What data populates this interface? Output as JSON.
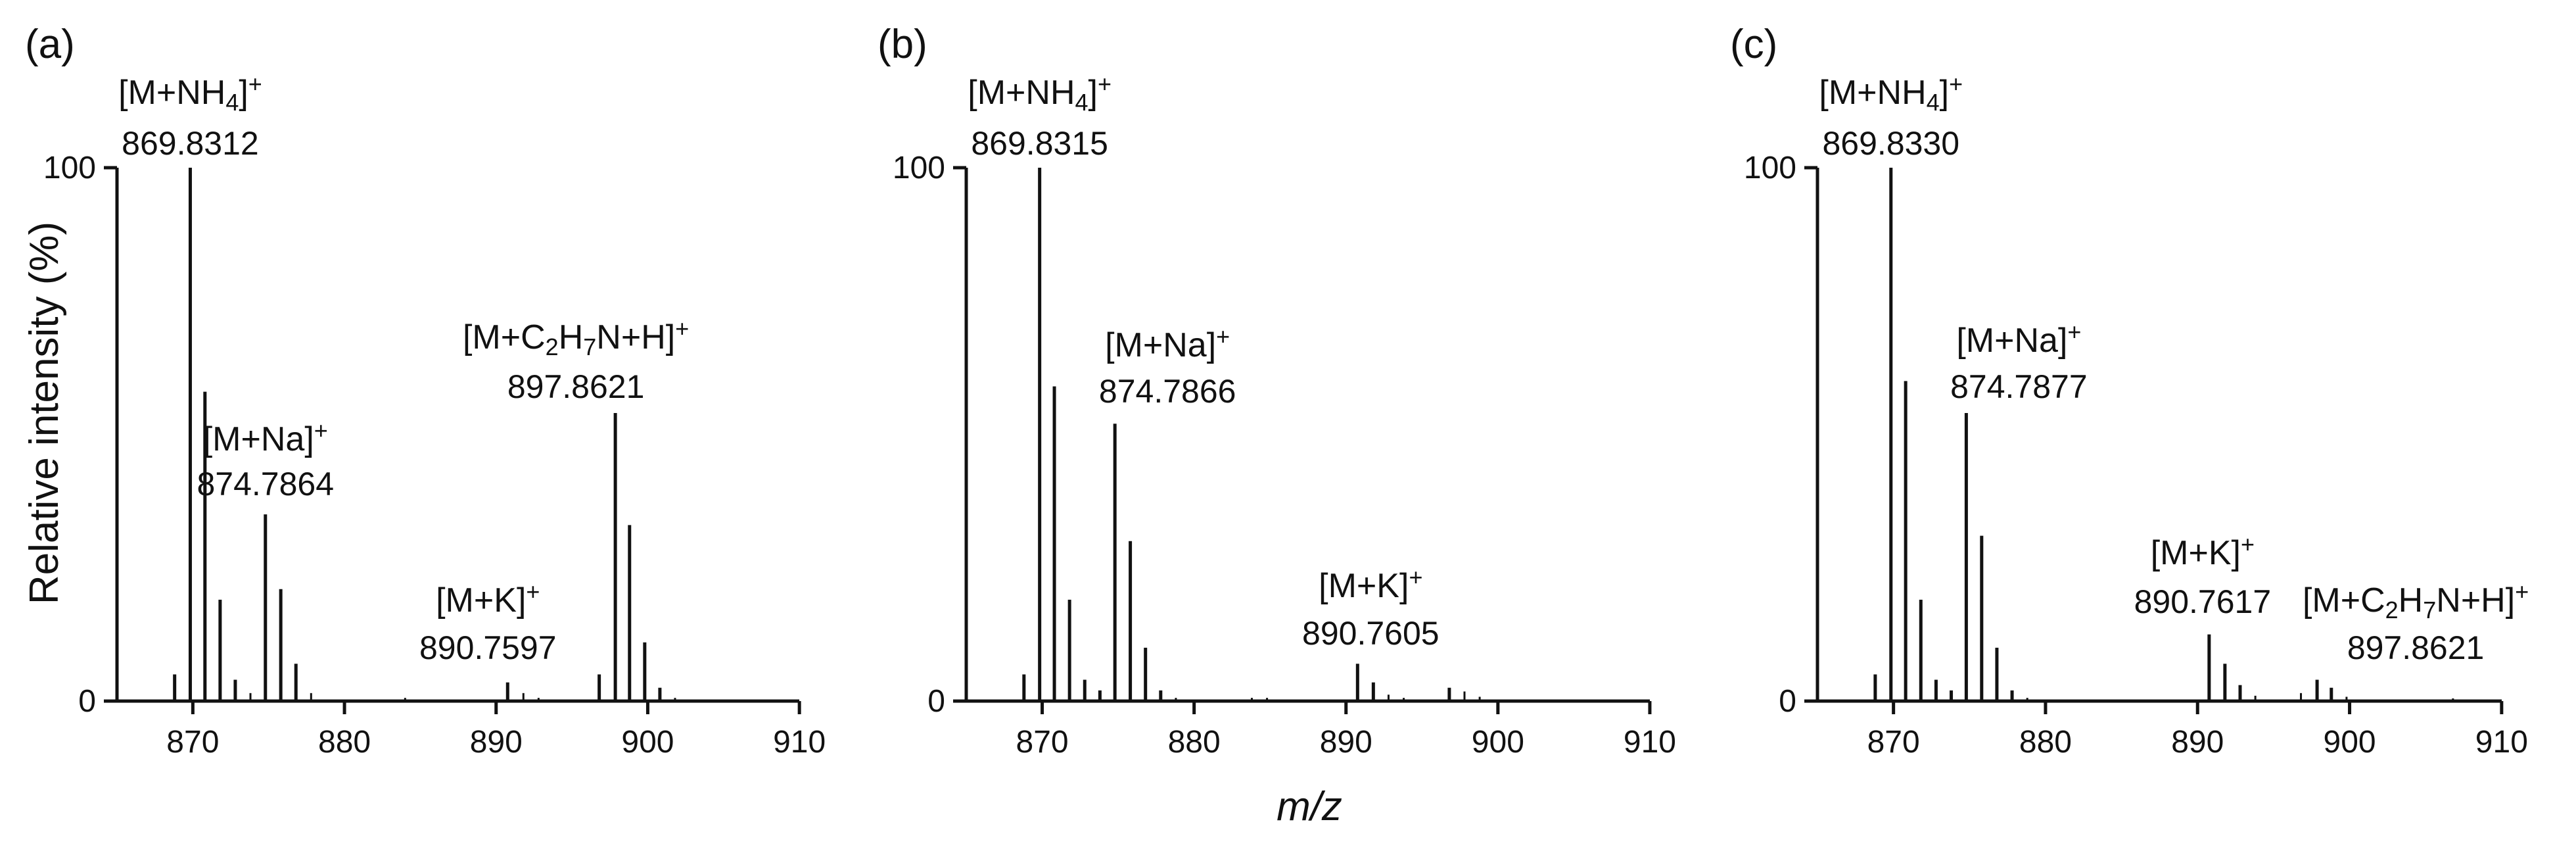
{
  "colors": {
    "ion_label": "#ee1c1c",
    "text": "#111111",
    "axis": "#111111"
  },
  "chart_data": [
    {
      "panel": "(a)",
      "type": "bar",
      "xlim": [
        865,
        910
      ],
      "ylim": [
        0,
        100
      ],
      "xticks": [
        870,
        880,
        890,
        900,
        910
      ],
      "yticks": [
        0,
        100
      ],
      "ylabel": "Relative intensity (%)",
      "peaks": [
        {
          "mz": 868.8,
          "intensity": 5
        },
        {
          "mz": 869.8312,
          "intensity": 100
        },
        {
          "mz": 870.8,
          "intensity": 58
        },
        {
          "mz": 871.8,
          "intensity": 19
        },
        {
          "mz": 872.8,
          "intensity": 4
        },
        {
          "mz": 873.8,
          "intensity": 1.5
        },
        {
          "mz": 874.7864,
          "intensity": 35
        },
        {
          "mz": 875.8,
          "intensity": 21
        },
        {
          "mz": 876.8,
          "intensity": 7
        },
        {
          "mz": 877.8,
          "intensity": 1.5
        },
        {
          "mz": 884.0,
          "intensity": 0.6
        },
        {
          "mz": 890.7597,
          "intensity": 3.5
        },
        {
          "mz": 891.8,
          "intensity": 1.5
        },
        {
          "mz": 892.8,
          "intensity": 0.6
        },
        {
          "mz": 896.8,
          "intensity": 5
        },
        {
          "mz": 897.8621,
          "intensity": 54
        },
        {
          "mz": 898.8,
          "intensity": 33
        },
        {
          "mz": 899.8,
          "intensity": 11
        },
        {
          "mz": 900.8,
          "intensity": 2.5
        },
        {
          "mz": 901.8,
          "intensity": 0.6
        }
      ],
      "annotations": [
        {
          "ion": {
            "base": "[M+NH",
            "sub1": "4",
            "mid": "",
            "sub2": "",
            "end": "]",
            "sup": "+"
          },
          "mass": "869.8312",
          "mz": 869.8312,
          "intensity": 100
        },
        {
          "ion": {
            "base": "[M+Na",
            "sub1": "",
            "mid": "",
            "sub2": "",
            "end": "]",
            "sup": "+"
          },
          "mass": "874.7864",
          "mz": 874.7864,
          "intensity": 35
        },
        {
          "ion": {
            "base": "[M+K",
            "sub1": "",
            "mid": "",
            "sub2": "",
            "end": "]",
            "sup": "+"
          },
          "mass": "890.7597",
          "mz": 890.7597,
          "intensity": 3.5
        },
        {
          "ion": {
            "base": "[M+C",
            "sub1": "2",
            "mid": "H",
            "sub2": "7",
            "end": "N+H]",
            "sup": "+"
          },
          "mass": "897.8621",
          "mz": 897.8621,
          "intensity": 54
        }
      ]
    },
    {
      "panel": "(b)",
      "type": "bar",
      "xlim": [
        865,
        910
      ],
      "ylim": [
        0,
        100
      ],
      "xticks": [
        870,
        880,
        890,
        900,
        910
      ],
      "yticks": [
        0,
        100
      ],
      "xlabel": "m/z",
      "peaks": [
        {
          "mz": 868.8,
          "intensity": 5
        },
        {
          "mz": 869.8315,
          "intensity": 100
        },
        {
          "mz": 870.8,
          "intensity": 59
        },
        {
          "mz": 871.8,
          "intensity": 19
        },
        {
          "mz": 872.8,
          "intensity": 4
        },
        {
          "mz": 873.8,
          "intensity": 2
        },
        {
          "mz": 874.7866,
          "intensity": 52
        },
        {
          "mz": 875.8,
          "intensity": 30
        },
        {
          "mz": 876.8,
          "intensity": 10
        },
        {
          "mz": 877.8,
          "intensity": 2
        },
        {
          "mz": 878.8,
          "intensity": 0.6
        },
        {
          "mz": 883.8,
          "intensity": 0.6
        },
        {
          "mz": 884.8,
          "intensity": 0.6
        },
        {
          "mz": 890.7605,
          "intensity": 7
        },
        {
          "mz": 891.8,
          "intensity": 3.5
        },
        {
          "mz": 892.8,
          "intensity": 1.2
        },
        {
          "mz": 893.8,
          "intensity": 0.6
        },
        {
          "mz": 896.8,
          "intensity": 2.5
        },
        {
          "mz": 897.8,
          "intensity": 1.8
        },
        {
          "mz": 898.8,
          "intensity": 0.8
        }
      ],
      "annotations": [
        {
          "ion": {
            "base": "[M+NH",
            "sub1": "4",
            "mid": "",
            "sub2": "",
            "end": "]",
            "sup": "+"
          },
          "mass": "869.8315",
          "mz": 869.8315,
          "intensity": 100
        },
        {
          "ion": {
            "base": "[M+Na",
            "sub1": "",
            "mid": "",
            "sub2": "",
            "end": "]",
            "sup": "+"
          },
          "mass": "874.7866",
          "mz": 874.7866,
          "intensity": 52
        },
        {
          "ion": {
            "base": "[M+K",
            "sub1": "",
            "mid": "",
            "sub2": "",
            "end": "]",
            "sup": "+"
          },
          "mass": "890.7605",
          "mz": 890.7605,
          "intensity": 7
        }
      ]
    },
    {
      "panel": "(c)",
      "type": "bar",
      "xlim": [
        865,
        910
      ],
      "ylim": [
        0,
        100
      ],
      "xticks": [
        870,
        880,
        890,
        900,
        910
      ],
      "yticks": [
        0,
        100
      ],
      "peaks": [
        {
          "mz": 868.8,
          "intensity": 5
        },
        {
          "mz": 869.833,
          "intensity": 100
        },
        {
          "mz": 870.8,
          "intensity": 60
        },
        {
          "mz": 871.8,
          "intensity": 19
        },
        {
          "mz": 872.8,
          "intensity": 4
        },
        {
          "mz": 873.8,
          "intensity": 2
        },
        {
          "mz": 874.7877,
          "intensity": 54
        },
        {
          "mz": 875.8,
          "intensity": 31
        },
        {
          "mz": 876.8,
          "intensity": 10
        },
        {
          "mz": 877.8,
          "intensity": 2
        },
        {
          "mz": 878.8,
          "intensity": 0.6
        },
        {
          "mz": 890.7617,
          "intensity": 12.5
        },
        {
          "mz": 891.8,
          "intensity": 7
        },
        {
          "mz": 892.8,
          "intensity": 3
        },
        {
          "mz": 893.8,
          "intensity": 1
        },
        {
          "mz": 896.8,
          "intensity": 1.5
        },
        {
          "mz": 897.8621,
          "intensity": 4
        },
        {
          "mz": 898.8,
          "intensity": 2.5
        },
        {
          "mz": 899.8,
          "intensity": 0.8
        },
        {
          "mz": 906.8,
          "intensity": 0.5
        }
      ],
      "annotations": [
        {
          "ion": {
            "base": "[M+NH",
            "sub1": "4",
            "mid": "",
            "sub2": "",
            "end": "]",
            "sup": "+"
          },
          "mass": "869.8330",
          "mz": 869.833,
          "intensity": 100
        },
        {
          "ion": {
            "base": "[M+Na",
            "sub1": "",
            "mid": "",
            "sub2": "",
            "end": "]",
            "sup": "+"
          },
          "mass": "874.7877",
          "mz": 874.7877,
          "intensity": 54
        },
        {
          "ion": {
            "base": "[M+K",
            "sub1": "",
            "mid": "",
            "sub2": "",
            "end": "]",
            "sup": "+"
          },
          "mass": "890.7617",
          "mz": 890.7617,
          "intensity": 12.5
        },
        {
          "ion": {
            "base": "[M+C",
            "sub1": "2",
            "mid": "H",
            "sub2": "7",
            "end": "N+H]",
            "sup": "+"
          },
          "mass": "897.8621",
          "mz": 897.8621,
          "intensity": 4
        }
      ]
    }
  ]
}
